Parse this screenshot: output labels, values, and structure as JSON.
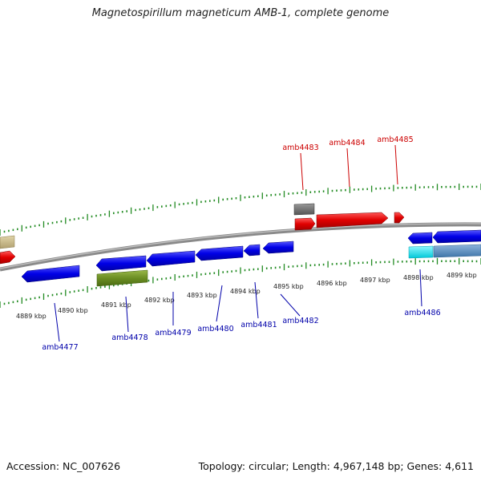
{
  "title": "Magnetospirillum magneticum AMB-1, complete genome",
  "footer": {
    "accession": "Accession: NC_007626",
    "summary": "Topology: circular; Length: 4,967,148 bp; Genes: 4,611"
  },
  "scale_labels": [
    "4889 kbp",
    "4890 kbp",
    "4891 kbp",
    "4892 kbp",
    "4893 kbp",
    "4894 kbp",
    "4895 kbp",
    "4896 kbp",
    "4897 kbp",
    "4898 kbp",
    "4899 kbp"
  ],
  "gene_labels_top": [
    "amb4483",
    "amb4484",
    "amb4485"
  ],
  "gene_labels_bottom": [
    "amb4477",
    "amb4478",
    "amb4479",
    "amb4480",
    "amb4481",
    "amb4482",
    "amb4486"
  ],
  "colors": {
    "forward_gene": "#e00000",
    "reverse_gene": "#0000e6",
    "top_label": "#cc0000",
    "bottom_label": "#0000aa",
    "tick": "#228b22",
    "backbone": "#808080",
    "olive": "#6b8e23",
    "tan": "#c8b98a",
    "cyan": "#00e5ee",
    "steel": "#5b8fbf",
    "gray_box": "#666666"
  }
}
